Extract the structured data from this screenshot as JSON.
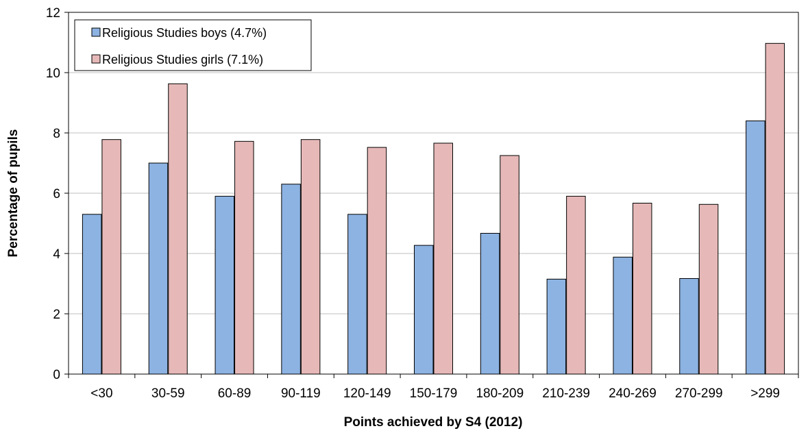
{
  "chart_data": {
    "type": "bar",
    "title": "",
    "xlabel": "Points achieved by S4 (2012)",
    "ylabel": "Percentage of pupils",
    "ylim": [
      0,
      12
    ],
    "yticks": [
      "0",
      "2",
      "4",
      "6",
      "8",
      "10",
      "12"
    ],
    "grid": true,
    "legend_position": "top-left",
    "categories": [
      "<30",
      "30-59",
      "60-89",
      "90-119",
      "120-149",
      "150-179",
      "180-209",
      "210-239",
      "240-269",
      "270-299",
      ">299"
    ],
    "series": [
      {
        "name": "Religious Studies boys (4.7%)",
        "color": "#8db3e2",
        "values": [
          5.3,
          7.0,
          5.9,
          6.3,
          5.3,
          4.27,
          4.67,
          3.15,
          3.88,
          3.17,
          8.4
        ]
      },
      {
        "name": "Religious Studies girls (7.1%)",
        "color": "#e6b9b8",
        "values": [
          7.78,
          9.63,
          7.72,
          7.78,
          7.52,
          7.66,
          7.25,
          5.9,
          5.67,
          5.63,
          10.97
        ]
      }
    ]
  }
}
